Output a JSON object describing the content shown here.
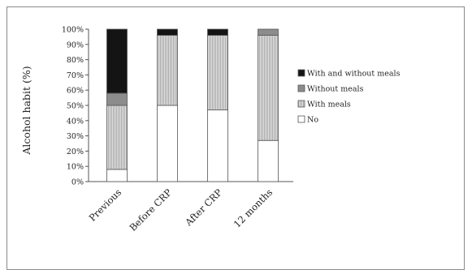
{
  "chart_data": {
    "type": "bar",
    "stacked": true,
    "title": "",
    "xlabel": "",
    "ylabel": "Alcohol habit (%)",
    "ylim": [
      0,
      100
    ],
    "grid": false,
    "legend_position": "right",
    "categories": [
      "Previous",
      "Before CRP",
      "After CRP",
      "12 months"
    ],
    "y_ticks": [
      "0%",
      "10%",
      "20%",
      "30%",
      "40%",
      "50%",
      "60%",
      "70%",
      "80%",
      "90%",
      "100%"
    ],
    "series": [
      {
        "name": "No",
        "color": "#ffffff",
        "pattern": "none",
        "values": [
          8,
          50,
          47,
          27
        ]
      },
      {
        "name": "With meals",
        "color": "#d6d6d6",
        "pattern": "lines",
        "values": [
          42,
          46,
          49,
          69
        ]
      },
      {
        "name": "Without meals",
        "color": "#8c8c8c",
        "pattern": "none",
        "values": [
          8,
          0,
          0,
          4
        ]
      },
      {
        "name": "With and without meals",
        "color": "#141414",
        "pattern": "none",
        "values": [
          42,
          4,
          4,
          0
        ]
      }
    ]
  }
}
